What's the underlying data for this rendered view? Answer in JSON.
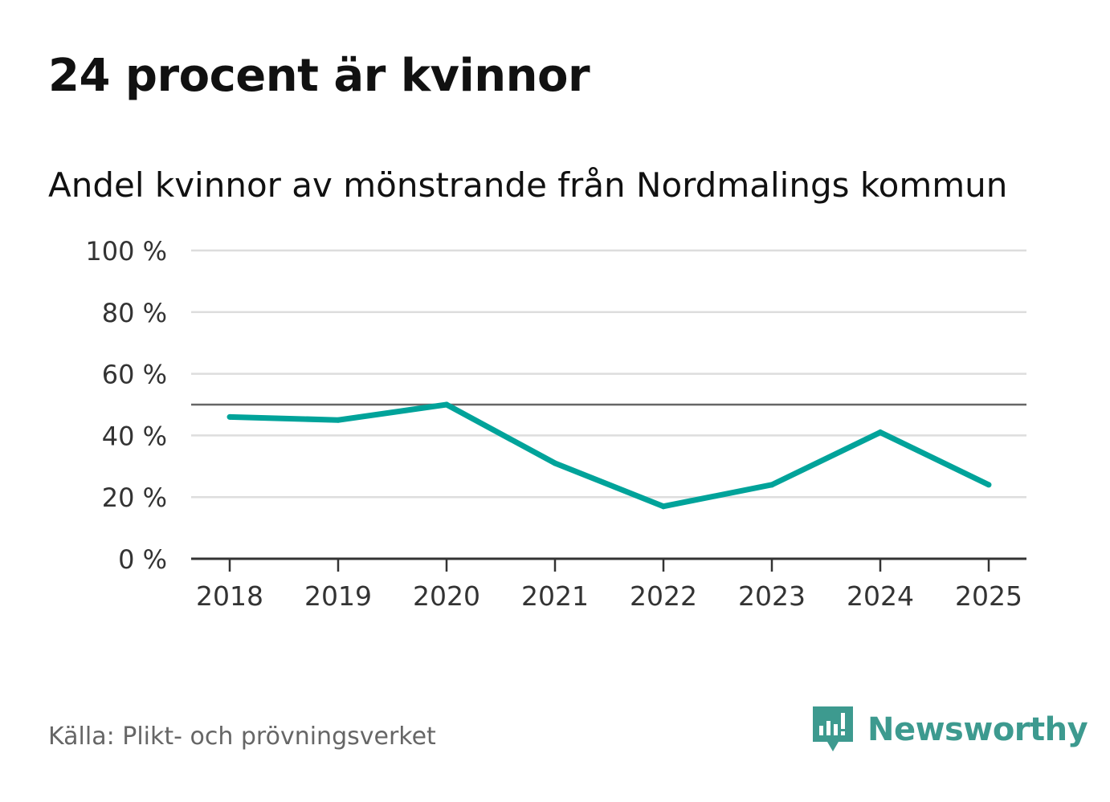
{
  "title": "24 procent är kvinnor",
  "subtitle": "Andel kvinnor av mönstrande från Nordmalings kommun",
  "source": "Källa: Plikt- och prövningsverket",
  "brand": "Newsworthy",
  "colors": {
    "line": "#00a39a",
    "grid": "#dddddd",
    "reference": "#666666",
    "axis": "#333333",
    "brand": "#3d9a8f"
  },
  "chart_data": {
    "type": "line",
    "title": "24 procent är kvinnor",
    "subtitle": "Andel kvinnor av mönstrande från Nordmalings kommun",
    "xlabel": "",
    "ylabel": "",
    "categories": [
      "2018",
      "2019",
      "2020",
      "2021",
      "2022",
      "2023",
      "2024",
      "2025"
    ],
    "series": [
      {
        "name": "Andel kvinnor",
        "values": [
          46,
          45,
          50,
          31,
          17,
          24,
          41,
          24
        ]
      }
    ],
    "ylim": [
      0,
      100
    ],
    "yticks": [
      0,
      20,
      40,
      60,
      80,
      100
    ],
    "ytick_labels": [
      "0 %",
      "20 %",
      "40 %",
      "60 %",
      "80 %",
      "100 %"
    ],
    "reference_line": 50,
    "grid": true
  }
}
